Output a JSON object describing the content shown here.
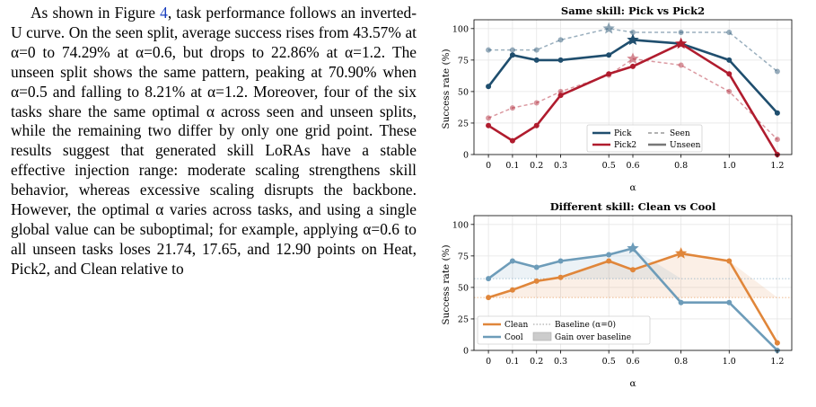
{
  "paragraph": {
    "s1": "As shown in Figure ",
    "fig_ref": "4",
    "s2": ", task performance follows an inverted-U curve. On the seen split, average success rises from 43.57% at α=0 to 74.29% at α=0.6, but drops to 22.86% at α=1.2. The unseen split shows the same pattern, peaking at 70.90% when α=0.5 and falling to 8.21% at α=1.2. Moreover, four of the six tasks share the same optimal α across seen and unseen splits, while the remaining two differ by only one grid point. These results suggest that generated skill LoRAs have a stable effective injection range: moderate scaling strengthens skill behavior, whereas excessive scaling disrupts the backbone. However, the optimal α varies across tasks, and using a single global value can be suboptimal; for example, applying α=0.6 to all unseen tasks loses 21.74, 17.65, and 12.90 points on Heat, Pick2, and Clean relative to"
  },
  "colors": {
    "pick": "#1f4e6e",
    "pick2": "#b01c2e",
    "clean": "#e0863a",
    "cool": "#6d9cb9",
    "grid": "#e6e6e6",
    "text": "#000000"
  },
  "chart_data": [
    {
      "type": "line",
      "title": "Same skill: Pick vs Pick2",
      "xlabel": "α",
      "ylabel": "Success rate (%)",
      "x": [
        0,
        0.1,
        0.2,
        0.3,
        0.5,
        0.6,
        0.8,
        1.0,
        1.2
      ],
      "xticks": [
        "0",
        "0.1",
        "0.2",
        "0.3",
        "0.5",
        "0.6",
        "0.8",
        "1.0",
        "1.2"
      ],
      "yticks": [
        0,
        25,
        50,
        75,
        100
      ],
      "ylim": [
        0,
        107
      ],
      "grid": true,
      "legend_position": "lower center",
      "series": [
        {
          "name": "Pick",
          "split": "Unseen",
          "color_key": "pick",
          "values": [
            54,
            79,
            75,
            75,
            79,
            91,
            88,
            75,
            33
          ],
          "star_index": 5
        },
        {
          "name": "Pick2",
          "split": "Unseen",
          "color_key": "pick2",
          "values": [
            23,
            11,
            23,
            47,
            64,
            70,
            88,
            64,
            0
          ],
          "star_index": 6
        },
        {
          "name": "Pick",
          "split": "Seen",
          "color_key": "pick",
          "values": [
            83,
            83,
            83,
            91,
            100,
            97,
            97,
            97,
            66
          ],
          "star_index": 4
        },
        {
          "name": "Pick2",
          "split": "Seen",
          "color_key": "pick2",
          "values": [
            29,
            37,
            41,
            50,
            63,
            76,
            71,
            50,
            12
          ],
          "star_index": 5
        }
      ],
      "legend": {
        "pick": "Pick",
        "pick2": "Pick2",
        "seen": "Seen",
        "unseen": "Unseen"
      }
    },
    {
      "type": "line",
      "title": "Different skill: Clean vs Cool",
      "xlabel": "α",
      "ylabel": "Success rate (%)",
      "x": [
        0,
        0.1,
        0.2,
        0.3,
        0.5,
        0.6,
        0.8,
        1.0,
        1.2
      ],
      "xticks": [
        "0",
        "0.1",
        "0.2",
        "0.3",
        "0.5",
        "0.6",
        "0.8",
        "1.0",
        "1.2"
      ],
      "yticks": [
        0,
        25,
        50,
        75,
        100
      ],
      "ylim": [
        0,
        107
      ],
      "grid": true,
      "legend_position": "lower left",
      "series": [
        {
          "name": "Clean",
          "color_key": "clean",
          "values": [
            42,
            48,
            55,
            58,
            71,
            64,
            77,
            71,
            6
          ],
          "star_index": 6
        },
        {
          "name": "Cool",
          "color_key": "cool",
          "values": [
            57,
            71,
            66,
            71,
            76,
            81,
            38,
            38,
            0
          ],
          "star_index": 5
        }
      ],
      "legend": {
        "clean": "Clean",
        "cool": "Cool",
        "baseline": "Baseline (α=0)",
        "gain": "Gain over baseline"
      }
    }
  ]
}
